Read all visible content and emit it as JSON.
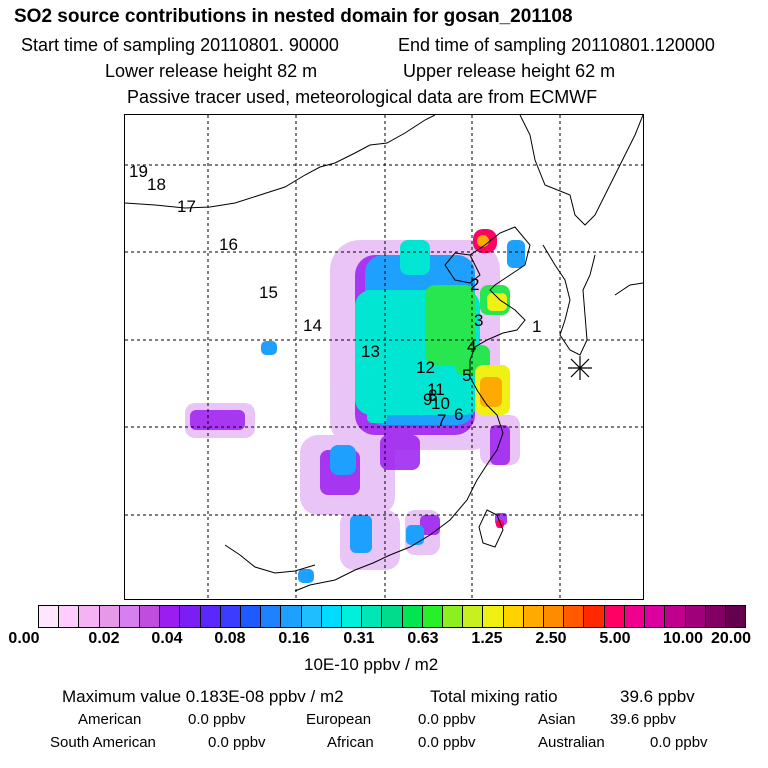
{
  "header": {
    "title": "SO2 source contributions in nested domain for gosan_201108",
    "start_time": "Start time of sampling 20110801. 90000",
    "end_time": "End time of sampling 20110801.120000",
    "lower_height": "Lower release height   82 m",
    "upper_height": "Upper release height   62 m",
    "note": "Passive tracer used, meteorological data are from ECMWF"
  },
  "map": {
    "region_labels": [
      "19",
      "18",
      "17",
      "16",
      "15",
      "14",
      "13",
      "12",
      "11",
      "9",
      "10",
      "8",
      "7",
      "6",
      "5",
      "4",
      "3",
      "2",
      "1"
    ],
    "receptor_symbol": "asterisk-icon"
  },
  "colorbar": {
    "colors": [
      "#ffe6ff",
      "#ffccff",
      "#f5b3f5",
      "#e699e6",
      "#d680f0",
      "#c04ddb",
      "#9b1ef0",
      "#7a1ef5",
      "#5a28ff",
      "#3c3cff",
      "#1e5aff",
      "#1e82ff",
      "#1ea0ff",
      "#1ebeff",
      "#00dcff",
      "#00f0dc",
      "#00e6b4",
      "#00dc8c",
      "#00e650",
      "#28f028",
      "#8cf01e",
      "#c8f01e",
      "#f0f014",
      "#ffd200",
      "#ffaa00",
      "#ff8c00",
      "#ff5a00",
      "#ff2800",
      "#ff0064",
      "#f0008c",
      "#dc00a0",
      "#c0008c",
      "#a0007a",
      "#820064",
      "#64004e"
    ],
    "ticks": [
      "0.00",
      "0.02",
      "0.04",
      "0.08",
      "0.16",
      "0.31",
      "0.63",
      "1.25",
      "2.50",
      "5.00",
      "10.00",
      "20.00"
    ],
    "unit": "10E-10 ppbv / m2"
  },
  "stats": {
    "max_value": "Maximum value  0.183E-08 ppbv / m2",
    "total_mixing_label": "Total mixing ratio",
    "total_mixing_value": "39.6 ppbv",
    "american_label": "American",
    "american_value": "0.0 ppbv",
    "european_label": "European",
    "european_value": "0.0 ppbv",
    "asian_label": "Asian",
    "asian_value": "39.6 ppbv",
    "south_american_label": "South American",
    "south_american_value": "0.0 ppbv",
    "african_label": "African",
    "african_value": "0.0 ppbv",
    "australian_label": "Australian",
    "australian_value": "0.0 ppbv"
  }
}
